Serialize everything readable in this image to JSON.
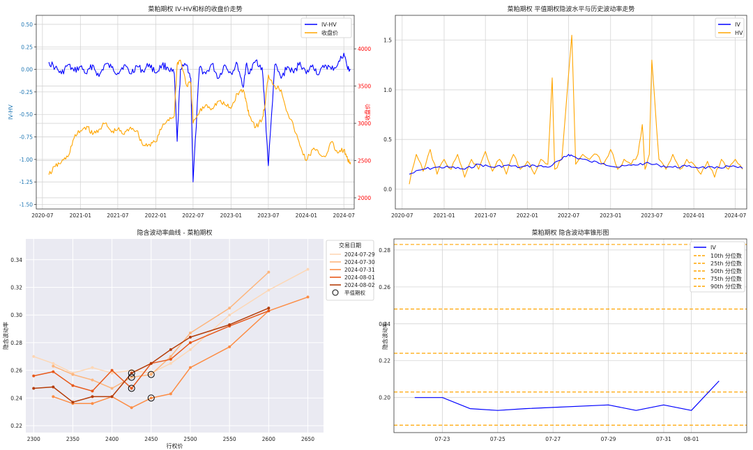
{
  "chart_data": [
    {
      "id": "p1",
      "type": "line",
      "title": "菜粕期权 IV-HV和标的收盘价走势",
      "ylabel": "IV-HV",
      "y2label": "收盘价",
      "ylim": [
        -1.55,
        0.6
      ],
      "y2lim": [
        1850,
        4450
      ],
      "xlim": [
        "2020-06-01",
        "2024-08-20"
      ],
      "yticks": [
        "0.50",
        "0.25",
        "0.00",
        "-0.25",
        "-0.50",
        "-0.75",
        "-1.00",
        "-1.25",
        "-1.50"
      ],
      "y2ticks": [
        "4000",
        "3500",
        "3000",
        "2500",
        "2000"
      ],
      "xticks": [
        "2020-07",
        "2021-01",
        "2021-07",
        "2022-01",
        "2022-07",
        "2023-01",
        "2023-07",
        "2024-01",
        "2024-07"
      ],
      "legend_position": "upper right",
      "grid": true,
      "colors": {
        "IV-HV": "#0000ff",
        "收盘价": "#ffa500",
        "y2axis": "#ff0000",
        "yaxis": "#1f77b4"
      },
      "series": [
        {
          "name": "IV-HV",
          "axis": "left",
          "x": [
            "2020-08-01",
            "2020-09-01",
            "2020-10-01",
            "2020-11-01",
            "2020-12-01",
            "2021-01-01",
            "2021-02-01",
            "2021-03-01",
            "2021-04-01",
            "2021-05-01",
            "2021-06-01",
            "2021-07-01",
            "2021-08-01",
            "2021-09-01",
            "2021-10-01",
            "2021-11-01",
            "2021-12-01",
            "2022-01-01",
            "2022-02-01",
            "2022-03-01",
            "2022-04-01",
            "2022-04-15",
            "2022-05-01",
            "2022-06-01",
            "2022-06-20",
            "2022-07-01",
            "2022-08-01",
            "2022-09-01",
            "2022-10-01",
            "2022-11-01",
            "2022-12-01",
            "2023-01-01",
            "2023-02-01",
            "2023-03-01",
            "2023-03-15",
            "2023-04-01",
            "2023-05-01",
            "2023-06-01",
            "2023-06-15",
            "2023-07-01",
            "2023-08-01",
            "2023-09-01",
            "2023-10-01",
            "2023-11-01",
            "2023-12-01",
            "2024-01-01",
            "2024-02-01",
            "2024-03-01",
            "2024-04-01",
            "2024-05-01",
            "2024-06-01",
            "2024-07-01",
            "2024-07-20",
            "2024-08-02"
          ],
          "values": [
            0.08,
            0.02,
            -0.05,
            0.05,
            -0.02,
            0.03,
            -0.05,
            0.05,
            -0.08,
            0.06,
            0.02,
            -0.04,
            0.05,
            -0.05,
            0.04,
            -0.02,
            0.06,
            -0.04,
            0.05,
            0.02,
            -0.05,
            -0.8,
            0.0,
            0.05,
            -0.1,
            -1.25,
            0.02,
            -0.05,
            0.06,
            -0.1,
            0.05,
            -0.04,
            0.06,
            -0.2,
            0.05,
            -0.05,
            0.1,
            0.02,
            -0.45,
            -1.07,
            0.05,
            -0.1,
            0.03,
            -0.04,
            0.08,
            -0.05,
            0.05,
            -0.06,
            0.05,
            0.0,
            0.05,
            0.18,
            0.0,
            0.0
          ]
        },
        {
          "name": "收盘价",
          "axis": "right",
          "x": [
            "2020-08-01",
            "2020-09-01",
            "2020-10-01",
            "2020-11-01",
            "2020-12-01",
            "2021-01-01",
            "2021-02-01",
            "2021-03-01",
            "2021-04-01",
            "2021-05-01",
            "2021-06-01",
            "2021-07-01",
            "2021-08-01",
            "2021-09-01",
            "2021-10-01",
            "2021-11-01",
            "2021-12-01",
            "2022-01-01",
            "2022-02-01",
            "2022-03-01",
            "2022-04-01",
            "2022-04-15",
            "2022-05-01",
            "2022-06-01",
            "2022-06-20",
            "2022-07-01",
            "2022-08-01",
            "2022-09-01",
            "2022-10-01",
            "2022-11-01",
            "2022-12-01",
            "2023-01-01",
            "2023-02-01",
            "2023-03-01",
            "2023-03-15",
            "2023-04-01",
            "2023-05-01",
            "2023-06-01",
            "2023-06-15",
            "2023-07-01",
            "2023-08-01",
            "2023-09-01",
            "2023-10-01",
            "2023-11-01",
            "2023-12-01",
            "2024-01-01",
            "2024-02-01",
            "2024-03-01",
            "2024-04-01",
            "2024-05-01",
            "2024-06-01",
            "2024-07-01",
            "2024-07-20",
            "2024-08-02"
          ],
          "values": [
            2310,
            2420,
            2480,
            2550,
            2800,
            2900,
            2960,
            2850,
            2920,
            3000,
            2880,
            2920,
            2850,
            2950,
            2900,
            2700,
            2720,
            2750,
            2950,
            3050,
            3100,
            3800,
            3850,
            3500,
            3550,
            3000,
            3150,
            3250,
            3200,
            3300,
            3250,
            3200,
            3400,
            3450,
            3300,
            3100,
            2950,
            3050,
            3250,
            3650,
            3500,
            3450,
            3150,
            2950,
            2700,
            2500,
            2650,
            2600,
            2550,
            2750,
            2600,
            2650,
            2500,
            2450
          ]
        }
      ]
    },
    {
      "id": "p2",
      "type": "line",
      "title": "菜粕期权 平值期权隐波水平与历史波动率走势",
      "ylim": [
        -0.2,
        1.75
      ],
      "xlim": [
        "2020-06-01",
        "2024-08-20"
      ],
      "yticks": [
        "1.5",
        "1.0",
        "0.5",
        "0.0"
      ],
      "xticks": [
        "2020-07",
        "2021-01",
        "2021-07",
        "2022-01",
        "2022-07",
        "2023-01",
        "2023-07",
        "2024-01",
        "2024-07"
      ],
      "legend_position": "upper right",
      "grid": true,
      "colors": {
        "IV": "#0000ff",
        "HV": "#ffa500"
      },
      "series": [
        {
          "name": "IV",
          "x": [
            "2020-08-01",
            "2020-10-01",
            "2020-12-01",
            "2021-02-01",
            "2021-04-01",
            "2021-06-01",
            "2021-08-01",
            "2021-10-01",
            "2021-12-01",
            "2022-02-01",
            "2022-04-01",
            "2022-06-01",
            "2022-07-01",
            "2022-08-01",
            "2022-10-01",
            "2022-12-01",
            "2023-02-01",
            "2023-04-01",
            "2023-06-01",
            "2023-08-01",
            "2023-10-01",
            "2023-12-01",
            "2024-02-01",
            "2024-04-01",
            "2024-06-01",
            "2024-08-02"
          ],
          "values": [
            0.15,
            0.2,
            0.22,
            0.22,
            0.2,
            0.25,
            0.22,
            0.24,
            0.22,
            0.24,
            0.22,
            0.3,
            0.35,
            0.32,
            0.28,
            0.26,
            0.22,
            0.24,
            0.26,
            0.24,
            0.22,
            0.23,
            0.22,
            0.21,
            0.23,
            0.21
          ]
        },
        {
          "name": "HV",
          "x": [
            "2020-08-01",
            "2020-09-01",
            "2020-10-01",
            "2020-11-01",
            "2020-12-01",
            "2021-01-01",
            "2021-02-01",
            "2021-03-01",
            "2021-04-01",
            "2021-05-01",
            "2021-06-01",
            "2021-07-01",
            "2021-08-01",
            "2021-09-01",
            "2021-10-01",
            "2021-11-01",
            "2021-12-01",
            "2022-01-01",
            "2022-02-01",
            "2022-03-01",
            "2022-04-01",
            "2022-04-20",
            "2022-05-01",
            "2022-06-01",
            "2022-07-15",
            "2022-08-01",
            "2022-09-01",
            "2022-10-01",
            "2022-11-01",
            "2022-12-01",
            "2023-01-01",
            "2023-02-01",
            "2023-03-01",
            "2023-04-01",
            "2023-05-01",
            "2023-05-20",
            "2023-06-01",
            "2023-06-20",
            "2023-07-01",
            "2023-08-01",
            "2023-09-01",
            "2023-10-01",
            "2023-11-01",
            "2023-12-01",
            "2024-01-01",
            "2024-02-01",
            "2024-03-01",
            "2024-04-01",
            "2024-05-01",
            "2024-06-01",
            "2024-07-01",
            "2024-08-02"
          ],
          "values": [
            0.05,
            0.35,
            0.18,
            0.4,
            0.15,
            0.3,
            0.2,
            0.35,
            0.12,
            0.3,
            0.2,
            0.38,
            0.18,
            0.3,
            0.15,
            0.35,
            0.2,
            0.28,
            0.15,
            0.3,
            0.25,
            1.12,
            0.2,
            0.3,
            1.55,
            0.25,
            0.35,
            0.3,
            0.35,
            0.25,
            0.4,
            0.2,
            0.3,
            0.25,
            0.35,
            0.65,
            0.2,
            0.35,
            1.3,
            0.3,
            0.2,
            0.35,
            0.2,
            0.3,
            0.25,
            0.15,
            0.28,
            0.12,
            0.3,
            0.2,
            0.3,
            0.2
          ]
        }
      ]
    },
    {
      "id": "p3",
      "type": "line",
      "title": "隐含波动率曲线 - 菜粕期权",
      "xlabel": "行权价",
      "ylabel": "隐含波动率",
      "xlim": [
        2290,
        2670
      ],
      "ylim": [
        0.215,
        0.355
      ],
      "xticks": [
        2300,
        2350,
        2400,
        2450,
        2500,
        2550,
        2600,
        2650
      ],
      "yticks": [
        "0.34",
        "0.32",
        "0.30",
        "0.28",
        "0.26",
        "0.24",
        "0.22"
      ],
      "legend_title": "交易日期",
      "legend_position": "outside upper right",
      "grid": true,
      "series": [
        {
          "name": "2024-07-29",
          "color": "#fdd7b5",
          "x": [
            2300,
            2325,
            2350,
            2375,
            2400,
            2425,
            2450,
            2475,
            2500,
            2550,
            2600,
            2650
          ],
          "values": [
            0.27,
            0.265,
            0.258,
            0.262,
            0.258,
            0.26,
            0.258,
            0.265,
            0.275,
            0.3,
            0.318,
            0.333
          ]
        },
        {
          "name": "2024-07-30",
          "color": "#fdb57c",
          "x": [
            2325,
            2350,
            2375,
            2400,
            2425,
            2450,
            2475,
            2500,
            2550,
            2600
          ],
          "values": [
            0.263,
            0.257,
            0.253,
            0.247,
            0.255,
            0.257,
            0.27,
            0.287,
            0.305,
            0.331
          ]
        },
        {
          "name": "2024-07-31",
          "color": "#fc8d45",
          "x": [
            2325,
            2350,
            2375,
            2400,
            2425,
            2450,
            2475,
            2500,
            2550,
            2600,
            2650
          ],
          "values": [
            0.241,
            0.236,
            0.236,
            0.241,
            0.233,
            0.24,
            0.243,
            0.262,
            0.277,
            0.303,
            0.313
          ]
        },
        {
          "name": "2024-08-01",
          "color": "#e8591a",
          "x": [
            2300,
            2325,
            2350,
            2375,
            2400,
            2425,
            2450,
            2475,
            2500,
            2550,
            2600
          ],
          "values": [
            0.256,
            0.259,
            0.249,
            0.245,
            0.26,
            0.247,
            0.265,
            0.268,
            0.28,
            0.292,
            0.303
          ]
        },
        {
          "name": "2024-08-02",
          "color": "#b53d08",
          "x": [
            2300,
            2325,
            2350,
            2375,
            2400,
            2425,
            2450,
            2475,
            2500,
            2550,
            2600
          ],
          "values": [
            0.247,
            0.248,
            0.237,
            0.241,
            0.241,
            0.258,
            0.265,
            0.275,
            0.284,
            0.293,
            0.305
          ]
        }
      ],
      "atm_label": "平值期权",
      "atm_points": [
        {
          "x": 2425,
          "y": 0.258
        },
        {
          "x": 2425,
          "y": 0.255
        },
        {
          "x": 2425,
          "y": 0.247
        },
        {
          "x": 2450,
          "y": 0.257
        },
        {
          "x": 2450,
          "y": 0.24
        }
      ]
    },
    {
      "id": "p4",
      "type": "line",
      "title": "菜粕期权 隐含波动率锥形图",
      "ylabel": "隐含波动率",
      "ylim": [
        0.181,
        0.286
      ],
      "xlim": [
        "2024-07-21 06:00",
        "2024-08-03 00:00"
      ],
      "yticks": [
        "0.28",
        "0.26",
        "0.24",
        "0.22",
        "0.20"
      ],
      "xticks": [
        "07-23",
        "07-25",
        "07-27",
        "07-29",
        "07-31",
        "08-01"
      ],
      "xtick_dates": [
        "2024-07-23",
        "2024-07-25",
        "2024-07-27",
        "2024-07-29",
        "2024-07-31",
        "2024-08-01"
      ],
      "legend_position": "upper right",
      "grid": true,
      "colors": {
        "IV": "#0000ff",
        "percentile": "#ffa500"
      },
      "series": [
        {
          "name": "IV",
          "x": [
            "2024-07-22",
            "2024-07-23",
            "2024-07-24",
            "2024-07-25",
            "2024-07-26",
            "2024-07-29",
            "2024-07-30",
            "2024-07-31",
            "2024-08-01",
            "2024-08-02"
          ],
          "values": [
            0.2,
            0.2,
            0.194,
            0.193,
            0.194,
            0.196,
            0.193,
            0.196,
            0.193,
            0.209
          ]
        }
      ],
      "percentiles": [
        {
          "name": "10th 分位数",
          "value": 0.185
        },
        {
          "name": "25th 分位数",
          "value": 0.203
        },
        {
          "name": "50th 分位数",
          "value": 0.224
        },
        {
          "name": "75th 分位数",
          "value": 0.248
        },
        {
          "name": "90th 分位数",
          "value": 0.283
        }
      ]
    }
  ]
}
